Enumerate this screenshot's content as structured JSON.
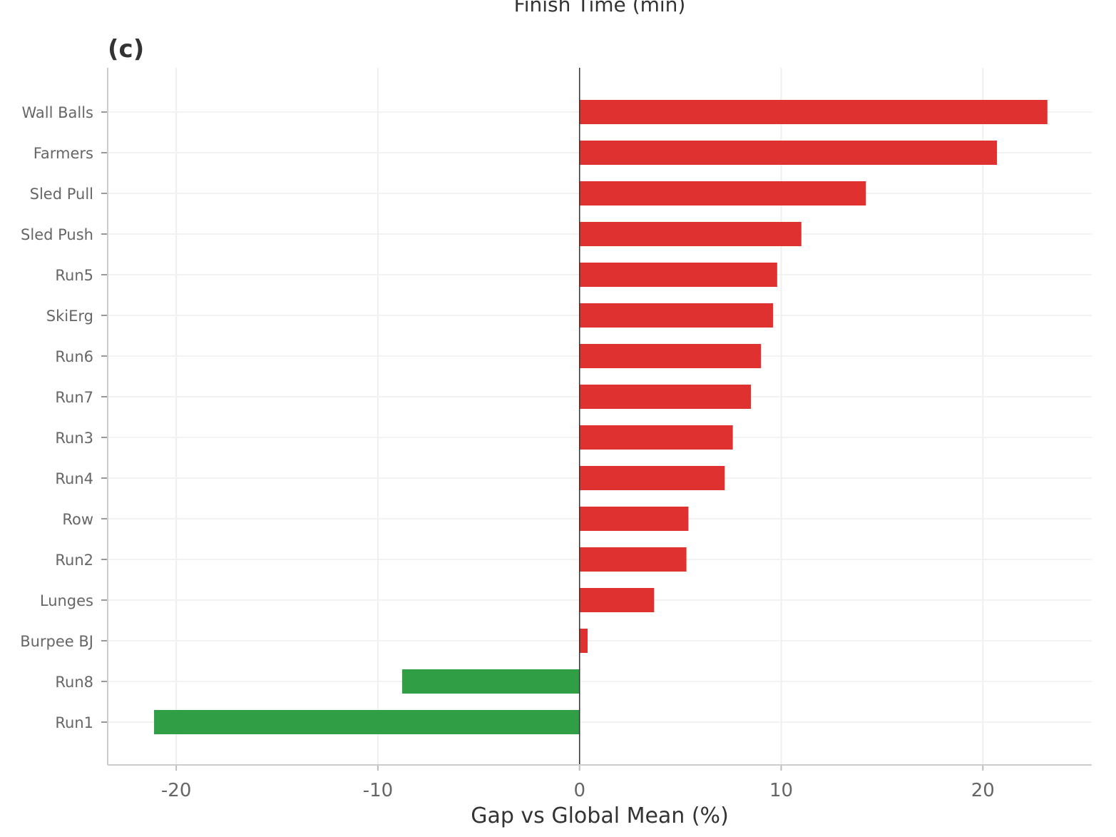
{
  "chart_data": {
    "type": "barh",
    "top_text": "Finish Time (min)",
    "panel_label": "(c)",
    "xlabel": "Gap vs Global Mean (%)",
    "categories": [
      "Wall Balls",
      "Farmers",
      "Sled Pull",
      "Sled Push",
      "Run5",
      "SkiErg",
      "Run6",
      "Run7",
      "Run3",
      "Run4",
      "Row",
      "Run2",
      "Lunges",
      "Burpee BJ",
      "Run8",
      "Run1"
    ],
    "values": [
      23.2,
      20.7,
      14.2,
      11.0,
      9.8,
      9.6,
      9.0,
      8.5,
      7.6,
      7.2,
      5.4,
      5.3,
      3.7,
      0.4,
      -8.8,
      -21.1
    ],
    "colors": [
      "#e03131",
      "#e03131",
      "#e03131",
      "#e03131",
      "#e03131",
      "#e03131",
      "#e03131",
      "#e03131",
      "#e03131",
      "#e03131",
      "#e03131",
      "#e03131",
      "#e03131",
      "#e03131",
      "#2f9e44",
      "#2f9e44"
    ],
    "xlim": [
      -23.4,
      25.4
    ],
    "xticks": [
      -20,
      -10,
      0,
      10,
      20
    ],
    "grid": true
  }
}
